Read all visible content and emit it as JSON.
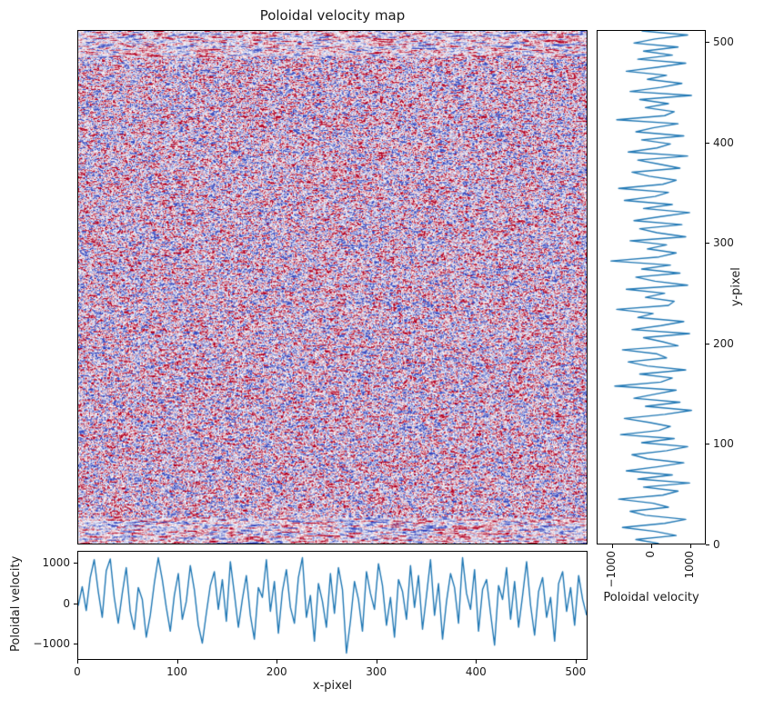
{
  "figure": {
    "title": "Poloidal velocity map",
    "colors": {
      "line": "#1f77b4",
      "heat_blue": "#3b4cc0",
      "heat_red": "#b40426",
      "heat_mid": "#f7f7fa",
      "axis": "#000000",
      "text": "#1a1a1a"
    }
  },
  "chart_data": [
    {
      "type": "heatmap",
      "title": "Poloidal velocity map",
      "x_range": [
        0,
        512
      ],
      "y_range": [
        0,
        512
      ],
      "colormap": "coolwarm",
      "value_range": [
        -1500,
        1500
      ],
      "noise_seed": 42,
      "description": "2D random poloidal velocity fluctuation field, 512x512 pixels, pale center with stronger horizontal streaks near top and bottom edges, no tick labels shown"
    },
    {
      "type": "line",
      "name": "vertical-profile",
      "xlabel": "Poloidal velocity",
      "ylabel": "y-pixel",
      "x_ticks": [
        -1000,
        0,
        1000
      ],
      "y_ticks": [
        0,
        100,
        200,
        300,
        400,
        500
      ],
      "x_range": [
        -1400,
        1400
      ],
      "y_range": [
        0,
        512
      ],
      "legend": "none",
      "grid": false,
      "values": [
        200,
        -400,
        650,
        100,
        -750,
        350,
        900,
        -150,
        -550,
        450,
        50,
        -850,
        300,
        700,
        -200,
        1000,
        -350,
        550,
        -650,
        150,
        850,
        -100,
        -500,
        400,
        950,
        -250,
        600,
        -800,
        200,
        500,
        -50,
        -700,
        350,
        1050,
        -150,
        750,
        -450,
        100,
        650,
        -950,
        250,
        550,
        -300,
        900,
        -100,
        -600,
        400,
        150,
        -750,
        700,
        300,
        -200,
        1000,
        -500,
        250,
        850,
        -350,
        50,
        -900,
        450,
        600,
        -150,
        350,
        -650,
        950,
        100,
        -400,
        750,
        -250,
        500,
        -1050,
        200,
        650,
        -100,
        400,
        -550,
        900,
        150,
        -300,
        800,
        -450,
        250,
        1000,
        -200,
        550,
        -700,
        100,
        450,
        -850,
        300,
        650,
        -50,
        -500,
        750,
        200,
        -350,
        950,
        -600,
        150,
        500,
        -250,
        850,
        -400,
        50,
        700,
        -900,
        350,
        600,
        -150,
        450,
        -300,
        1050,
        -550,
        250,
        800,
        -100,
        400,
        -650,
        150,
        900,
        -350,
        550,
        -200,
        700,
        -450,
        100,
        950,
        -250
      ]
    },
    {
      "type": "line",
      "name": "horizontal-profile",
      "xlabel": "x-pixel",
      "ylabel": "Poloidal velocity",
      "x_ticks": [
        0,
        100,
        200,
        300,
        400,
        500
      ],
      "y_ticks": [
        -1000,
        0,
        1000
      ],
      "x_range": [
        0,
        512
      ],
      "y_range": [
        -1400,
        1300
      ],
      "legend": "none",
      "grid": false,
      "values": [
        -60,
        420,
        -180,
        650,
        1100,
        300,
        -350,
        820,
        1120,
        150,
        -500,
        250,
        900,
        -200,
        -650,
        400,
        100,
        -850,
        -300,
        500,
        1150,
        600,
        -100,
        -700,
        200,
        750,
        -400,
        50,
        950,
        350,
        -550,
        -1000,
        -250,
        450,
        800,
        -150,
        600,
        -450,
        1050,
        250,
        -600,
        100,
        700,
        -300,
        -900,
        400,
        150,
        1100,
        -200,
        550,
        -750,
        300,
        850,
        -100,
        -500,
        650,
        1150,
        -350,
        200,
        -950,
        500,
        50,
        -600,
        750,
        -250,
        900,
        350,
        -1250,
        -450,
        550,
        100,
        -700,
        800,
        250,
        -150,
        1000,
        450,
        -550,
        150,
        -850,
        600,
        300,
        -400,
        950,
        -100,
        700,
        -650,
        200,
        1100,
        -300,
        500,
        -900,
        50,
        750,
        400,
        -500,
        1150,
        250,
        -150,
        850,
        -700,
        350,
        600,
        -250,
        -1050,
        450,
        100,
        900,
        -400,
        550,
        -600,
        200,
        1050,
        -50,
        -800,
        300,
        650,
        -350,
        150,
        -950,
        500,
        800,
        -200,
        400,
        -550,
        700,
        100,
        -300
      ]
    }
  ]
}
